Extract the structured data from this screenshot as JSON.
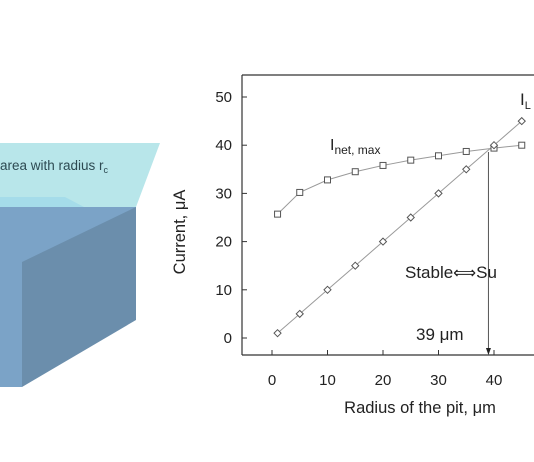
{
  "illustration": {
    "label": "area with radius r",
    "label_sub": "c",
    "colors": {
      "top_face": "#b8e6ea",
      "front_face": "#7ba3c7",
      "side_face": "#6b8eac",
      "highlight": "#8fd0ec"
    }
  },
  "chart_data": {
    "type": "line",
    "xlabel": "Radius of the pit, μm",
    "ylabel": "Current, μA",
    "xlim": [
      -5,
      45
    ],
    "ylim": [
      -5,
      55
    ],
    "x_ticks": [
      0,
      10,
      20,
      30,
      40
    ],
    "y_ticks": [
      0,
      10,
      20,
      30,
      40,
      50
    ],
    "grid": false,
    "series": [
      {
        "name": "I_net, max",
        "label_main": "I",
        "label_sub": "net, max",
        "marker": "square",
        "x": [
          1,
          5,
          10,
          15,
          20,
          25,
          30,
          35,
          40,
          45
        ],
        "y": [
          25.7,
          30.2,
          32.8,
          34.5,
          35.8,
          36.9,
          37.8,
          38.7,
          39.4,
          40.0
        ]
      },
      {
        "name": "I_L",
        "label_main": "I",
        "label_sub": "L",
        "marker": "diamond",
        "x": [
          1,
          5,
          10,
          15,
          20,
          25,
          30,
          35,
          40,
          45
        ],
        "y": [
          1,
          5,
          10,
          15,
          20,
          25,
          30,
          35,
          40,
          45
        ]
      }
    ],
    "annotations": {
      "stable_text": "Stable",
      "arrow_glyph": "⟺",
      "unstable_text": "Su",
      "crossing_value": 39,
      "crossing_label": "39 μm"
    }
  }
}
